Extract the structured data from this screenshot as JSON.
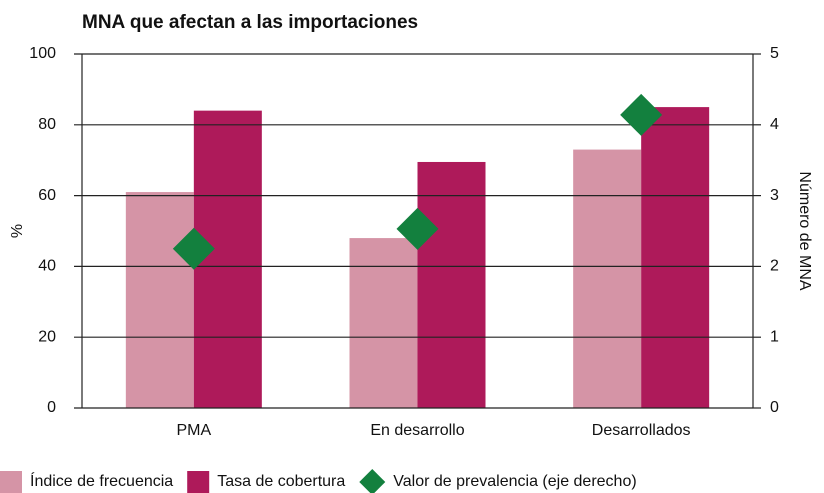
{
  "chart_data": {
    "type": "bar",
    "title": "MNA que afectan a las importaciones",
    "categories": [
      "PMA",
      "En desarrollo",
      "Desarrollados"
    ],
    "series": [
      {
        "name": "Índice de frecuencia",
        "color": "#d594a6",
        "values": [
          61,
          48,
          73
        ]
      },
      {
        "name": "Tasa de cobertura",
        "color": "#ae1a5a",
        "values": [
          84,
          69.5,
          85
        ]
      },
      {
        "name": "Valor de prevalencia (eje derecho)",
        "color": "#13803e",
        "values": [
          2.25,
          2.53,
          4.14
        ],
        "axis": "y2",
        "marker": "diamond"
      }
    ],
    "ylabel": "%",
    "y2label": "Número de MNA",
    "ylim": [
      0,
      100
    ],
    "yticks": [
      0,
      20,
      40,
      60,
      80,
      100
    ],
    "y2lim": [
      0,
      5
    ],
    "y2ticks": [
      0,
      1,
      2,
      3,
      4,
      5
    ],
    "grid": true,
    "legend": "bottom"
  }
}
